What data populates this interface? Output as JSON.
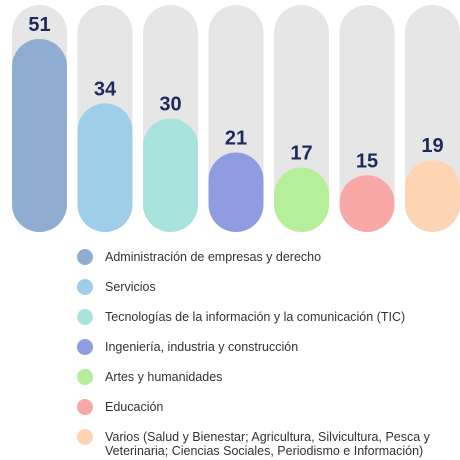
{
  "chart_data": {
    "type": "bar",
    "categories": [
      "Administración de empresas y derecho",
      "Servicios",
      "Tecnologías de la información y la comunicación (TIC)",
      "Ingeniería, industria y construcción",
      "Artes y humanidades",
      "Educación",
      "Varios (Salud y Bienestar; Agricultura, Silvicultura, Pesca y Veterinaria; Ciencias Sociales, Periodismo e Información)"
    ],
    "values": [
      51,
      34,
      30,
      21,
      17,
      15,
      19
    ],
    "colors": [
      "#8fadd0",
      "#9fcfe8",
      "#a8e3de",
      "#8f9de0",
      "#b6ef9a",
      "#f9a8a8",
      "#fdd5b5"
    ],
    "ylim": [
      0,
      60
    ]
  }
}
